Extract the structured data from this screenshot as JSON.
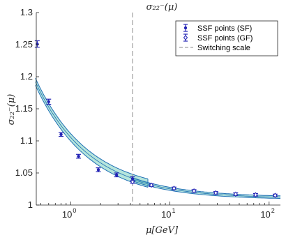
{
  "chart_data": {
    "type": "scatter",
    "title": "σ₂₂⁻(μ)",
    "xlabel": "μ[GeV]",
    "ylabel": "σ₂₂⁻(μ)",
    "x_scale": "log",
    "xlim": [
      0.45,
      130
    ],
    "ylim": [
      1.0,
      1.3
    ],
    "x_ticks": [
      {
        "base": "10",
        "exp": "0",
        "value": 1
      },
      {
        "base": "10",
        "exp": "1",
        "value": 10
      },
      {
        "base": "10",
        "exp": "2",
        "value": 100
      }
    ],
    "y_ticks": [
      {
        "value": 1.0,
        "label": "1"
      },
      {
        "value": 1.05,
        "label": "1.05"
      },
      {
        "value": 1.1,
        "label": "1.1"
      },
      {
        "value": 1.15,
        "label": "1.15"
      },
      {
        "value": 1.2,
        "label": "1.2"
      },
      {
        "value": 1.25,
        "label": "1.25"
      },
      {
        "value": 1.3,
        "label": "1.3"
      }
    ],
    "grid": false,
    "legend_position": "top-right",
    "switching_scale": 4.2,
    "series": [
      {
        "name": "SSF points (SF)",
        "color": "#2323b5",
        "marker": "filled-dot",
        "points": [
          {
            "x": 0.46,
            "y": 1.251,
            "err": 0.005
          },
          {
            "x": 0.6,
            "y": 1.161,
            "err": 0.004
          },
          {
            "x": 0.8,
            "y": 1.11,
            "err": 0.003
          },
          {
            "x": 1.2,
            "y": 1.076,
            "err": 0.003
          },
          {
            "x": 1.9,
            "y": 1.055,
            "err": 0.003
          },
          {
            "x": 2.9,
            "y": 1.047,
            "err": 0.003
          },
          {
            "x": 4.2,
            "y": 1.041,
            "err": 0.003
          }
        ]
      },
      {
        "name": "SSF points (GF)",
        "color": "#2323b5",
        "marker": "open-diamond",
        "points": [
          {
            "x": 4.2,
            "y": 1.036,
            "err": 0.002
          },
          {
            "x": 6.5,
            "y": 1.031,
            "err": 0.002
          },
          {
            "x": 11,
            "y": 1.026,
            "err": 0.002
          },
          {
            "x": 17.5,
            "y": 1.022,
            "err": 0.002
          },
          {
            "x": 29,
            "y": 1.019,
            "err": 0.002
          },
          {
            "x": 46,
            "y": 1.017,
            "err": 0.002
          },
          {
            "x": 73,
            "y": 1.016,
            "err": 0.002
          },
          {
            "x": 115,
            "y": 1.015,
            "err": 0.002
          }
        ]
      },
      {
        "name": "Switching scale",
        "color": "#a0a0a0",
        "marker": "dashed-line"
      }
    ]
  }
}
